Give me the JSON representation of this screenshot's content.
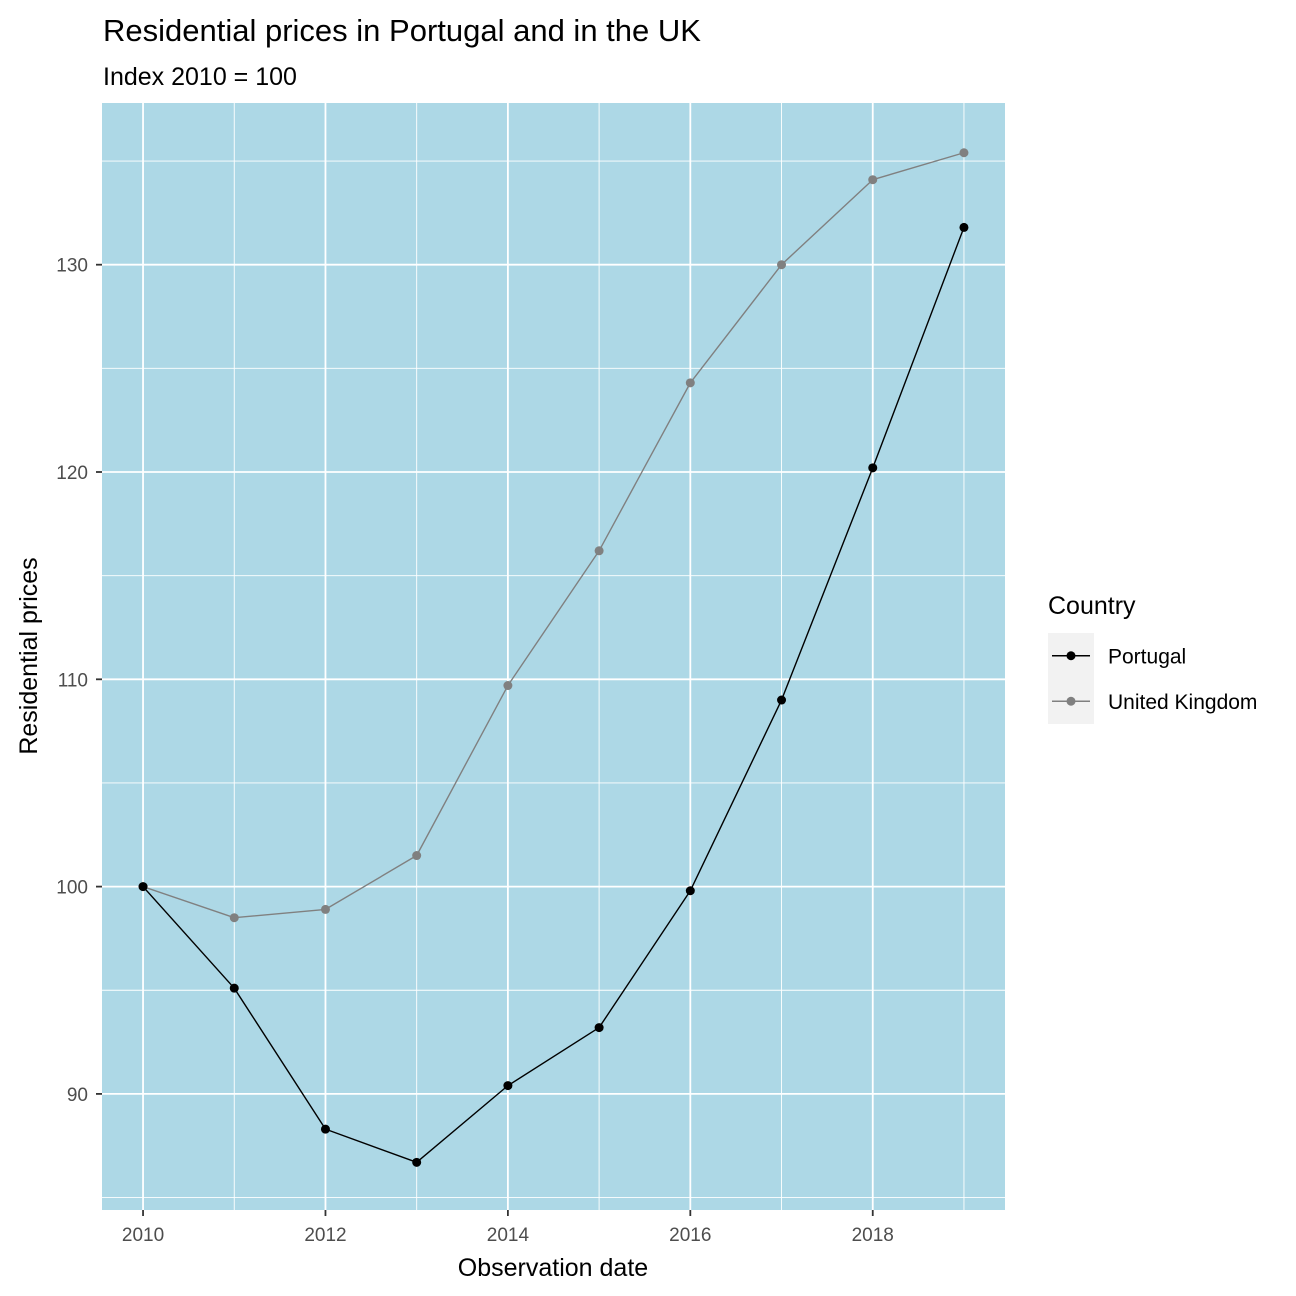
{
  "chart_data": {
    "type": "line",
    "title": "Residential prices in Portugal and in the UK",
    "subtitle": "Index 2010 = 100",
    "xlabel": "Observation date",
    "ylabel": "Residential prices",
    "x": [
      2010,
      2011,
      2012,
      2013,
      2014,
      2015,
      2016,
      2017,
      2018,
      2019
    ],
    "x_ticks": [
      "2010",
      "2012",
      "2014",
      "2016",
      "2018"
    ],
    "y_ticks": [
      "90",
      "100",
      "110",
      "120",
      "130"
    ],
    "xlim": [
      2009.55,
      2019.45
    ],
    "ylim": [
      84.4,
      137.8
    ],
    "legend": {
      "title": "Country",
      "position": "right"
    },
    "grid": true,
    "colors": {
      "panel_background": "#add8e6",
      "grid": "#ffffff"
    },
    "series": [
      {
        "name": "Portugal",
        "color": "#000000",
        "values": [
          100.0,
          95.1,
          88.3,
          86.7,
          90.4,
          93.2,
          99.8,
          109.0,
          120.2,
          131.8
        ]
      },
      {
        "name": "United Kingdom",
        "color": "#808080",
        "values": [
          100.0,
          98.5,
          98.9,
          101.5,
          109.7,
          116.2,
          124.3,
          130.0,
          134.1,
          135.4
        ]
      }
    ]
  }
}
